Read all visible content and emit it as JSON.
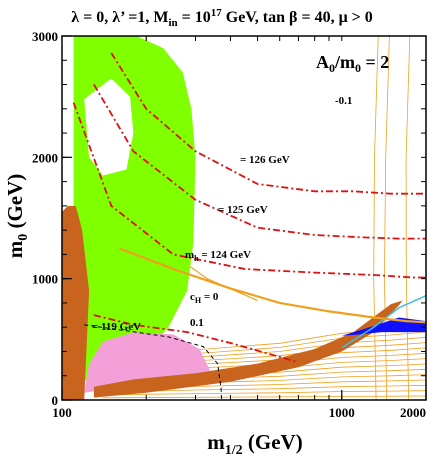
{
  "chart_data": {
    "type": "contour",
    "title": "λ = 0, λ’ =1, M",
    "title_sub_in": "in",
    "title_mid": " = 10",
    "title_sup": "17",
    "title_end": " GeV, tan β = 40,  μ > 0",
    "inset_label": "A",
    "inset_sub": "0",
    "inset_mid": "/m",
    "inset_sub2": "0",
    "inset_end": " = 2",
    "xlabel": "m",
    "xlabel_sub": "1/2",
    "xlabel_end": " (GeV)",
    "ylabel": "m",
    "ylabel_sub": "0",
    "ylabel_end": " (GeV)",
    "xlim": [
      100,
      2000
    ],
    "ylim": [
      0,
      3000
    ],
    "x_scale": "log",
    "x_ticks": [
      {
        "value": 100,
        "label": "100"
      },
      {
        "value": 1000,
        "label": "1000"
      },
      {
        "value": 2000,
        "label": "2000"
      }
    ],
    "y_ticks": [
      {
        "value": 0,
        "label": "0"
      },
      {
        "value": 1000,
        "label": "1000"
      },
      {
        "value": 2000,
        "label": "2000"
      },
      {
        "value": 3000,
        "label": "3000"
      }
    ],
    "colors": {
      "green": "#7fff00",
      "brown": "#c8641e",
      "pink": "#f4a0d8",
      "blue": "#1010ff",
      "orange": "#f0a020",
      "red": "#e01010",
      "cyan": "#40c0e0"
    },
    "mh_contours": [
      {
        "label": "= 126 GeV",
        "points": [
          [
            150,
            2860
          ],
          [
            200,
            2400
          ],
          [
            300,
            2050
          ],
          [
            500,
            1780
          ],
          [
            800,
            1720
          ],
          [
            1100,
            1720
          ],
          [
            1500,
            1700
          ],
          [
            2000,
            1700
          ]
        ]
      },
      {
        "label": "= 125 GeV",
        "points": [
          [
            130,
            2600
          ],
          [
            180,
            2050
          ],
          [
            300,
            1650
          ],
          [
            500,
            1420
          ],
          [
            800,
            1360
          ],
          [
            1200,
            1340
          ],
          [
            1600,
            1330
          ],
          [
            2000,
            1330
          ]
        ]
      },
      {
        "label_prefix": "m",
        "label_sub": "h",
        "label": " = 124 GeV",
        "points": [
          [
            110,
            2450
          ],
          [
            150,
            1600
          ],
          [
            250,
            1200
          ],
          [
            450,
            1080
          ],
          [
            800,
            1050
          ],
          [
            1300,
            1030
          ],
          [
            1800,
            1010
          ],
          [
            2000,
            1010
          ]
        ]
      },
      {
        "label": "= 119 GeV",
        "points": [
          [
            130,
            700
          ],
          [
            180,
            620
          ],
          [
            280,
            560
          ],
          [
            400,
            470
          ],
          [
            550,
            380
          ],
          [
            700,
            310
          ]
        ]
      }
    ],
    "ch_labels": [
      {
        "text": "c",
        "sub": "H",
        "end": " =  0",
        "x": 495,
        "y": 800
      },
      {
        "text": "0.1",
        "x": 650,
        "y": 630
      },
      {
        "text": "-0.1",
        "x": 1460,
        "y": 2520
      }
    ],
    "ch_zero": [
      [
        160,
        1250
      ],
      [
        250,
        1080
      ],
      [
        400,
        920
      ],
      [
        600,
        800
      ],
      [
        900,
        730
      ],
      [
        1300,
        680
      ],
      [
        1700,
        650
      ],
      [
        2000,
        640
      ]
    ],
    "regions": {
      "green": [
        [
          110,
          3000
        ],
        [
          185,
          3000
        ],
        [
          230,
          2900
        ],
        [
          270,
          2700
        ],
        [
          290,
          2400
        ],
        [
          300,
          2000
        ],
        [
          295,
          1300
        ],
        [
          280,
          900
        ],
        [
          240,
          600
        ],
        [
          200,
          400
        ],
        [
          150,
          200
        ],
        [
          115,
          150
        ],
        [
          110,
          1000
        ]
      ],
      "green_hole": [
        [
          120,
          2480
        ],
        [
          150,
          2650
        ],
        [
          175,
          2500
        ],
        [
          180,
          2200
        ],
        [
          170,
          1900
        ],
        [
          140,
          1850
        ],
        [
          125,
          2000
        ]
      ],
      "brown_left": [
        [
          100,
          0
        ],
        [
          120,
          0
        ],
        [
          125,
          900
        ],
        [
          118,
          1400
        ],
        [
          112,
          1600
        ],
        [
          105,
          1600
        ],
        [
          100,
          1550
        ]
      ],
      "brown_band": [
        [
          130,
          20
        ],
        [
          200,
          60
        ],
        [
          400,
          150
        ],
        [
          700,
          270
        ],
        [
          1000,
          400
        ],
        [
          1300,
          560
        ],
        [
          1600,
          780
        ],
        [
          1650,
          820
        ],
        [
          1500,
          790
        ],
        [
          1100,
          560
        ],
        [
          800,
          420
        ],
        [
          500,
          300
        ],
        [
          300,
          220
        ],
        [
          180,
          170
        ],
        [
          130,
          110
        ]
      ],
      "pink": [
        [
          120,
          60
        ],
        [
          160,
          100
        ],
        [
          200,
          130
        ],
        [
          300,
          180
        ],
        [
          340,
          230
        ],
        [
          310,
          420
        ],
        [
          250,
          540
        ],
        [
          180,
          560
        ],
        [
          140,
          480
        ],
        [
          125,
          300
        ]
      ],
      "blue": [
        [
          1000,
          530
        ],
        [
          1300,
          610
        ],
        [
          1600,
          680
        ],
        [
          2000,
          650
        ],
        [
          2000,
          560
        ],
        [
          1700,
          560
        ],
        [
          1400,
          560
        ],
        [
          1150,
          540
        ]
      ]
    }
  }
}
